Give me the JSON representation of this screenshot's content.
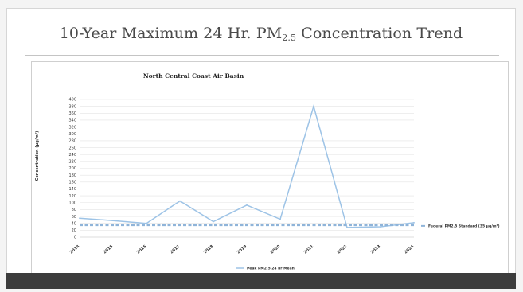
{
  "slide": {
    "title_main": "10-Year Maximum 24 Hr. PM",
    "title_sub": "2.5",
    "title_tail": " Concentration Trend"
  },
  "chart_data": {
    "type": "line",
    "title": "North Central Coast Air Basin",
    "ylabel": "Concentration (µg/m³)",
    "x": [
      "2014",
      "2015",
      "2016",
      "2017",
      "2018",
      "2019",
      "2020",
      "2021",
      "2022",
      "2023",
      "2024"
    ],
    "ylim": [
      0,
      400
    ],
    "yticks": [
      0,
      20,
      40,
      60,
      80,
      100,
      120,
      140,
      160,
      180,
      200,
      220,
      240,
      260,
      280,
      300,
      320,
      340,
      360,
      380,
      400
    ],
    "grid": true,
    "series": [
      {
        "name": "Peak PM2.5 24 hr Mean",
        "values": [
          55,
          48,
          40,
          105,
          45,
          93,
          52,
          380,
          28,
          30,
          42
        ],
        "color": "#9dc3e6",
        "style": "solid"
      },
      {
        "name": "Federal PM2.5 Standard (35 µg/m³)",
        "values": [
          35,
          35,
          35,
          35,
          35,
          35,
          35,
          35,
          35,
          35,
          35
        ],
        "color": "#8fb4d9",
        "style": "dashed"
      }
    ],
    "legend": {
      "right_label": "Federal PM2.5 Standard (35 µg/m³)",
      "bottom_label": "Peak PM2.5 24 hr Mean"
    },
    "legend_position": "right and bottom"
  }
}
